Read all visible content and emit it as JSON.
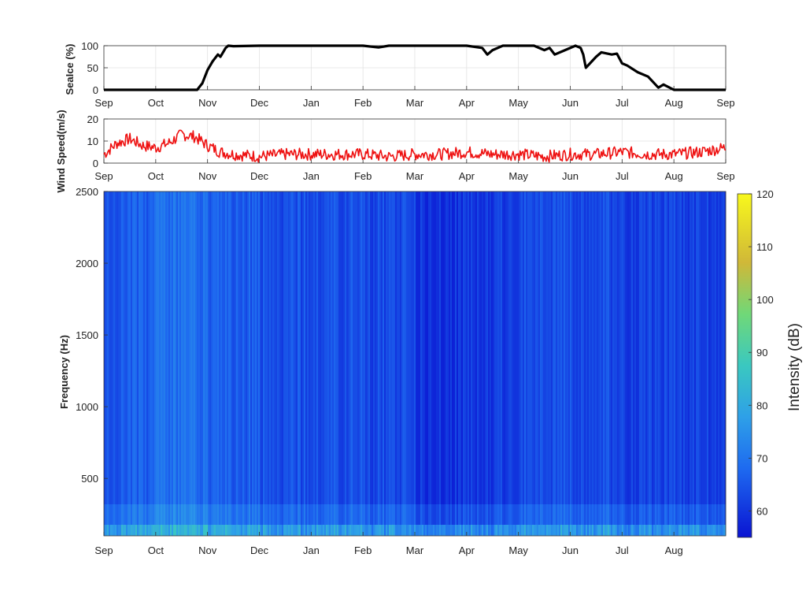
{
  "chart_data": [
    {
      "type": "line",
      "ylabel": "SeaIce (%)",
      "ylim": [
        0,
        100
      ],
      "yticks": [
        0,
        50,
        100
      ],
      "x_tick_labels": [
        "Sep",
        "Oct",
        "Nov",
        "Dec",
        "Jan",
        "Feb",
        "Mar",
        "Apr",
        "May",
        "Jun",
        "Jul",
        "Aug",
        "Sep"
      ],
      "grid": true,
      "series": [
        {
          "color": "#000000",
          "x_months": [
            0,
            1,
            1.8,
            1.9,
            2.0,
            2.1,
            2.2,
            2.25,
            2.35,
            2.4,
            2.5,
            3.0,
            3.5,
            4.0,
            5.0,
            5.3,
            5.5,
            6.0,
            7.0,
            7.3,
            7.4,
            7.5,
            7.7,
            8.0,
            8.3,
            8.5,
            8.6,
            8.7,
            8.9,
            9.1,
            9.2,
            9.25,
            9.3,
            9.5,
            9.6,
            9.8,
            9.9,
            10.0,
            10.1,
            10.3,
            10.5,
            10.7,
            10.8,
            11.0,
            11.1,
            11.2,
            11.3,
            11.5,
            12.0
          ],
          "values": [
            0,
            0,
            0,
            15,
            45,
            65,
            80,
            75,
            95,
            100,
            99,
            100,
            100,
            100,
            100,
            96,
            100,
            100,
            100,
            95,
            80,
            90,
            100,
            100,
            100,
            90,
            95,
            80,
            90,
            100,
            95,
            80,
            50,
            75,
            85,
            80,
            82,
            60,
            55,
            40,
            30,
            5,
            12,
            0,
            0,
            0,
            0,
            0,
            0
          ]
        }
      ]
    },
    {
      "type": "line",
      "ylabel": "Wind Speed(m/s)",
      "ylim": [
        0,
        20
      ],
      "yticks": [
        0,
        10,
        20
      ],
      "x_tick_labels": [
        "Sep",
        "Oct",
        "Nov",
        "Dec",
        "Jan",
        "Feb",
        "Mar",
        "Apr",
        "May",
        "Jun",
        "Jul",
        "Aug",
        "Sep"
      ],
      "grid": true,
      "series": [
        {
          "color": "#ee1111",
          "x_months": [
            0,
            0.25,
            0.5,
            0.75,
            1.0,
            1.25,
            1.5,
            1.75,
            2.0,
            2.25,
            2.5,
            3.0,
            3.5,
            4.0,
            4.5,
            5.0,
            5.5,
            6.0,
            6.5,
            7.0,
            7.5,
            8.0,
            8.5,
            9.0,
            9.5,
            10.0,
            10.5,
            11.0,
            11.5,
            12.0
          ],
          "values": [
            4,
            9,
            11,
            8,
            7,
            9,
            13,
            12,
            8,
            5,
            4,
            3,
            4,
            4,
            4,
            4,
            3,
            4,
            4,
            5,
            4,
            4,
            3,
            4,
            4,
            5,
            4,
            4,
            5,
            7
          ]
        }
      ]
    },
    {
      "type": "heatmap",
      "ylabel": "Frequency (Hz)",
      "ylim": [
        100,
        2500
      ],
      "yticks": [
        500,
        1000,
        1500,
        2000,
        2500
      ],
      "x_tick_labels": [
        "Sep",
        "Oct",
        "Nov",
        "Dec",
        "Jan",
        "Feb",
        "Mar",
        "Apr",
        "May",
        "Jun",
        "Jul",
        "Aug"
      ],
      "colorbar": {
        "label": "Intensity (dB)",
        "range": [
          55,
          120
        ],
        "ticks": [
          60,
          70,
          80,
          90,
          100,
          110,
          120
        ]
      },
      "description_values": {
        "month_mean_dB": [
          66,
          69,
          66,
          64,
          64,
          63,
          60,
          61,
          64,
          63,
          62,
          62
        ]
      }
    }
  ]
}
